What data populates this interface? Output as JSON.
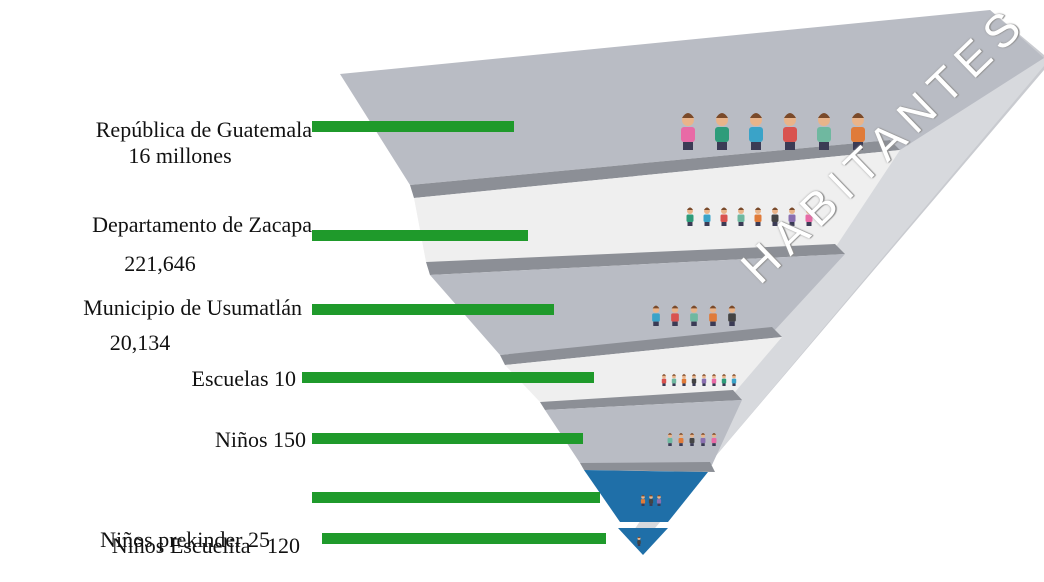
{
  "diagram": {
    "side_label": "HABITANTES",
    "colors": {
      "tier_gray": "#b9bcc4",
      "tier_light": "#efefef",
      "tier_edge": "#8c8f96",
      "tier_blue": "#1f6fa8",
      "bar_green": "#1f9a2b"
    },
    "levels": [
      {
        "line1": "República de Guatemala",
        "line2": "16 millones",
        "people": 6
      },
      {
        "line1": "Departamento de Zacapa",
        "line2": "221,646",
        "people": 8
      },
      {
        "line1": "Municipio de Usumatlán",
        "line2": "20,134",
        "people": 5
      },
      {
        "line1": "Escuelas 10",
        "line2": "",
        "people": 8
      },
      {
        "line1": "Niños 150",
        "line2": "",
        "people": 5
      },
      {
        "line1": "Niños Escuelita   120",
        "line2": "",
        "people": 3
      },
      {
        "line1": "Niños prekinder 25",
        "line2": "",
        "people": 1
      }
    ]
  }
}
